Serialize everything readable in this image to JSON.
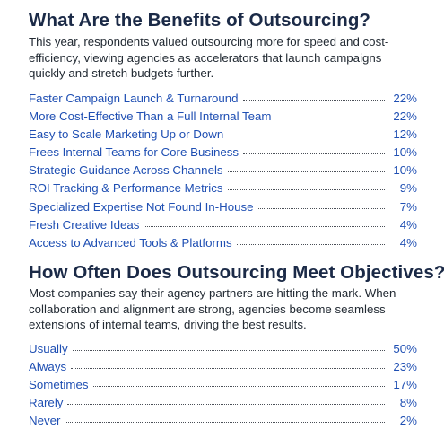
{
  "benefits": {
    "title": "What Are the Benefits of Outsourcing?",
    "intro": "This year, respondents valued outsourcing more for speed and cost-efficiency, viewing agencies as accelerators that launch campaigns quickly and stretch budgets further.",
    "items": [
      {
        "label": "Faster Campaign Launch & Turnaround",
        "value": "22%"
      },
      {
        "label": "More Cost-Effective Than a Full Internal Team",
        "value": "22%"
      },
      {
        "label": "Easy to Scale Marketing Up or Down",
        "value": "12%"
      },
      {
        "label": "Frees Internal Teams for Core Business",
        "value": "10%"
      },
      {
        "label": "Strategic Guidance Across Channels",
        "value": "10%"
      },
      {
        "label": "ROI Tracking & Performance Metrics",
        "value": "9%"
      },
      {
        "label": "Specialized Expertise Not Found In-House",
        "value": "7%"
      },
      {
        "label": "Fresh Creative Ideas",
        "value": "4%"
      },
      {
        "label": "Access to Advanced Tools & Platforms",
        "value": "4%"
      }
    ]
  },
  "objectives": {
    "title": "How Often Does Outsourcing Meet Objectives?",
    "intro": "Most companies say their agency partners are hitting the mark. When collaboration and alignment are strong, agencies become seamless extensions of internal teams, driving the best results.",
    "items": [
      {
        "label": "Usually",
        "value": "50%"
      },
      {
        "label": "Always",
        "value": "23%"
      },
      {
        "label": "Sometimes",
        "value": "17%"
      },
      {
        "label": "Rarely",
        "value": "8%"
      },
      {
        "label": "Never",
        "value": "2%"
      }
    ]
  },
  "colors": {
    "heading": "#1b2a47",
    "body_text": "#222a33",
    "list_text": "#1f4fb3"
  }
}
